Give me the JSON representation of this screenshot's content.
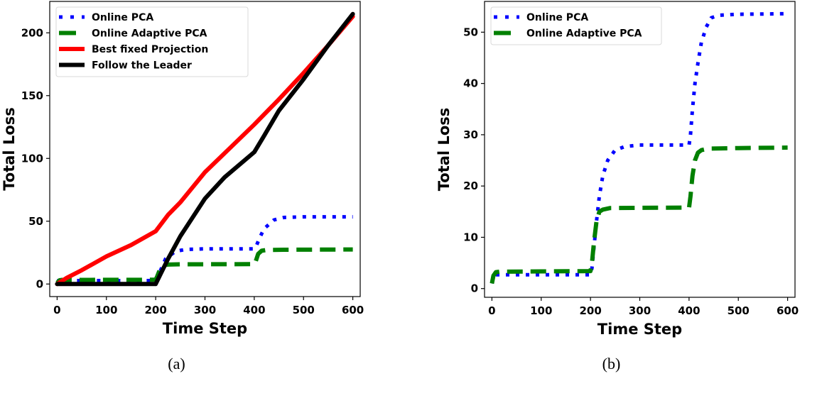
{
  "chart_data": [
    {
      "type": "line",
      "caption": "(a)",
      "xlabel": "Time Step",
      "ylabel": "Total Loss",
      "xlim": [
        -15,
        615
      ],
      "ylim": [
        -10,
        225
      ],
      "xticks": [
        0,
        100,
        200,
        300,
        400,
        500,
        600
      ],
      "yticks": [
        0,
        50,
        100,
        150,
        200
      ],
      "grid": false,
      "legend_position": "top-left",
      "series": [
        {
          "name": "Online PCA",
          "color": "#0000ff",
          "style": "dotted",
          "x": [
            0,
            200,
            205,
            210,
            220,
            240,
            260,
            300,
            400,
            405,
            410,
            420,
            440,
            460,
            500,
            600
          ],
          "y": [
            2.7,
            2.7,
            6,
            11,
            20,
            26,
            27.5,
            28,
            28,
            31,
            36,
            44,
            51,
            53,
            53.5,
            53.5
          ]
        },
        {
          "name": "Online Adaptive PCA",
          "color": "#008000",
          "style": "dashed",
          "x": [
            0,
            5,
            10,
            200,
            203,
            208,
            215,
            225,
            250,
            400,
            403,
            408,
            415,
            425,
            460,
            600
          ],
          "y": [
            1,
            3,
            3.3,
            3.4,
            6,
            11,
            15,
            15.5,
            15.7,
            15.8,
            18,
            24,
            26.5,
            27.1,
            27.3,
            27.5
          ]
        },
        {
          "name": "Best fixed Projection",
          "color": "#ff0000",
          "style": "solid",
          "x": [
            0,
            20,
            50,
            100,
            150,
            200,
            225,
            250,
            300,
            350,
            400,
            450,
            500,
            550,
            600
          ],
          "y": [
            0,
            5,
            11,
            22,
            31,
            42,
            55,
            65,
            89,
            108,
            127,
            147,
            168,
            190,
            213
          ]
        },
        {
          "name": "Follow the Leader",
          "color": "#000000",
          "style": "solid",
          "x": [
            0,
            200,
            225,
            250,
            300,
            340,
            400,
            420,
            450,
            500,
            550,
            600
          ],
          "y": [
            0,
            0,
            20,
            38,
            68,
            85,
            105,
            118,
            138,
            163,
            190,
            215
          ]
        }
      ]
    },
    {
      "type": "line",
      "caption": "(b)",
      "xlabel": "Time Step",
      "ylabel": "Total Loss",
      "xlim": [
        -15,
        615
      ],
      "ylim": [
        -1.7,
        56
      ],
      "xticks": [
        0,
        100,
        200,
        300,
        400,
        500,
        600
      ],
      "yticks": [
        0,
        10,
        20,
        30,
        40,
        50
      ],
      "grid": false,
      "legend_position": "top-left",
      "series": [
        {
          "name": "Online PCA",
          "color": "#0000ff",
          "style": "dotted",
          "x": [
            0,
            3,
            8,
            200,
            203,
            207,
            212,
            218,
            225,
            235,
            250,
            270,
            300,
            400,
            403,
            407,
            412,
            418,
            425,
            435,
            445,
            460,
            500,
            600
          ],
          "y": [
            1,
            2.2,
            2.7,
            2.7,
            4,
            8,
            13,
            18,
            22,
            25,
            27,
            27.7,
            28,
            28,
            30,
            35,
            40,
            44,
            48,
            51,
            52.8,
            53.3,
            53.5,
            53.6
          ]
        },
        {
          "name": "Online Adaptive PCA",
          "color": "#008000",
          "style": "dashed",
          "x": [
            0,
            3,
            8,
            15,
            200,
            203,
            207,
            212,
            218,
            225,
            240,
            400,
            403,
            407,
            412,
            418,
            425,
            440,
            500,
            600
          ],
          "y": [
            1,
            2.5,
            3.2,
            3.3,
            3.4,
            5,
            9,
            13,
            15,
            15.4,
            15.7,
            15.8,
            18,
            22,
            25,
            26.5,
            27,
            27.3,
            27.4,
            27.5
          ]
        }
      ]
    }
  ]
}
